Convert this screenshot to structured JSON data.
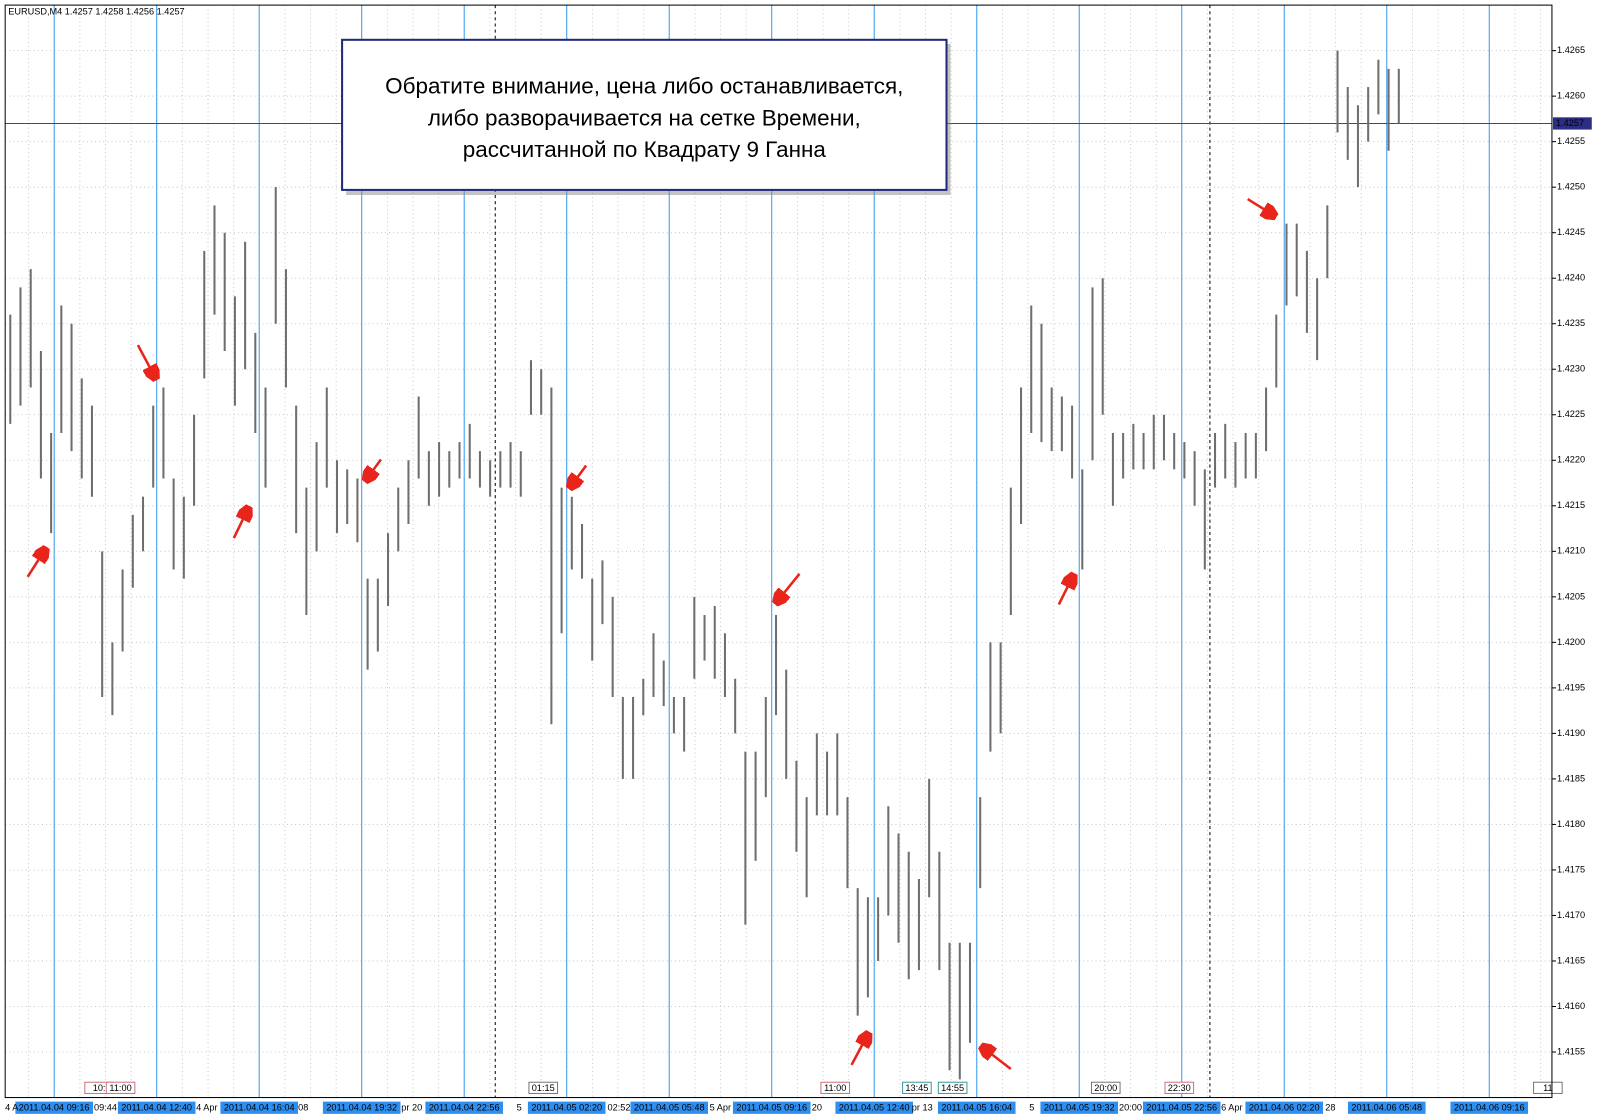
{
  "chart_data": {
    "type": "hl-bars",
    "title": "EURUSD,M4  1.4257 1.4258 1.4256 1.4257",
    "annotation": [
      "Обратите внимание, цена либо останавливается,",
      "либо разворачивается на сетке Времени,",
      "рассчитанной по Квадрату 9 Ганна"
    ],
    "color": "#6e6e6e",
    "high": [
      1.4236,
      1.4239,
      1.4241,
      1.4232,
      1.4223,
      1.4237,
      1.4235,
      1.4229,
      1.4226,
      1.421,
      1.42,
      1.4208,
      1.4214,
      1.4216,
      1.4226,
      1.4228,
      1.4218,
      1.4216,
      1.4225,
      1.4243,
      1.4248,
      1.4245,
      1.4238,
      1.4244,
      1.4234,
      1.4228,
      1.425,
      1.4241,
      1.4226,
      1.4217,
      1.4222,
      1.4228,
      1.422,
      1.4219,
      1.4218,
      1.4207,
      1.4207,
      1.4212,
      1.4217,
      1.422,
      1.4227,
      1.4221,
      1.4222,
      1.4221,
      1.4222,
      1.4224,
      1.4221,
      1.422,
      1.4221,
      1.4222,
      1.4221,
      1.4231,
      1.423,
      1.4228,
      1.4217,
      1.4216,
      1.4213,
      1.4207,
      1.4209,
      1.4205,
      1.4194,
      1.4194,
      1.4196,
      1.4201,
      1.4198,
      1.4194,
      1.4194,
      1.4205,
      1.4203,
      1.4204,
      1.4201,
      1.4196,
      1.4188,
      1.4188,
      1.4194,
      1.4203,
      1.4197,
      1.4187,
      1.4183,
      1.419,
      1.4188,
      1.419,
      1.4183,
      1.4173,
      1.4172,
      1.4172,
      1.4182,
      1.4179,
      1.4177,
      1.4174,
      1.4185,
      1.4177,
      1.4167,
      1.4167,
      1.4167,
      1.4183,
      1.42,
      1.42,
      1.4217,
      1.4228,
      1.4237,
      1.4235,
      1.4228,
      1.4227,
      1.4226,
      1.4219,
      1.4239,
      1.424,
      1.4223,
      1.4223,
      1.4224,
      1.4223,
      1.4225,
      1.4225,
      1.4223,
      1.4222,
      1.4221,
      1.4219,
      1.4223,
      1.4224,
      1.4222,
      1.4223,
      1.4223,
      1.4228,
      1.4236,
      1.4246,
      1.4246,
      1.4243,
      1.424,
      1.4248,
      1.4265,
      1.4261,
      1.4259,
      1.4261,
      1.4264,
      1.4263,
      1.4263
    ],
    "low": [
      1.4224,
      1.4226,
      1.4228,
      1.4218,
      1.4212,
      1.4223,
      1.4221,
      1.4218,
      1.4216,
      1.4194,
      1.4192,
      1.4199,
      1.4206,
      1.421,
      1.4217,
      1.4218,
      1.4208,
      1.4207,
      1.4215,
      1.4229,
      1.4236,
      1.4232,
      1.4226,
      1.423,
      1.4223,
      1.4217,
      1.4235,
      1.4228,
      1.4212,
      1.4203,
      1.421,
      1.4217,
      1.4212,
      1.4213,
      1.4211,
      1.4197,
      1.4199,
      1.4204,
      1.421,
      1.4213,
      1.4218,
      1.4215,
      1.4216,
      1.4217,
      1.4218,
      1.4218,
      1.4217,
      1.4216,
      1.4217,
      1.4217,
      1.4216,
      1.4225,
      1.4225,
      1.4191,
      1.4201,
      1.4208,
      1.4207,
      1.4198,
      1.4202,
      1.4194,
      1.4185,
      1.4185,
      1.4192,
      1.4194,
      1.4193,
      1.419,
      1.4188,
      1.4196,
      1.4198,
      1.4196,
      1.4194,
      1.419,
      1.4169,
      1.4176,
      1.4183,
      1.4192,
      1.4185,
      1.4177,
      1.4172,
      1.4181,
      1.4181,
      1.4181,
      1.4173,
      1.4159,
      1.4161,
      1.4165,
      1.417,
      1.4167,
      1.4163,
      1.4164,
      1.4172,
      1.4164,
      1.4153,
      1.4152,
      1.4156,
      1.4173,
      1.4188,
      1.419,
      1.4203,
      1.4213,
      1.4223,
      1.4222,
      1.4221,
      1.4221,
      1.4218,
      1.4208,
      1.422,
      1.4225,
      1.4215,
      1.4218,
      1.4219,
      1.4219,
      1.4219,
      1.422,
      1.4219,
      1.4218,
      1.4215,
      1.4208,
      1.4217,
      1.4218,
      1.4217,
      1.4218,
      1.4218,
      1.4221,
      1.4228,
      1.4237,
      1.4238,
      1.4234,
      1.4231,
      1.424,
      1.4256,
      1.4253,
      1.425,
      1.4255,
      1.4258,
      1.4254,
      1.4257
    ],
    "current_price": 1.4257,
    "ylim": [
      1.415,
      1.427
    ],
    "yticks": [
      1.4155,
      {
        "value": 1.416,
        "label": "1.4160"
      },
      1.4165,
      {
        "value": 1.417,
        "label": "1.4170"
      },
      1.4175,
      {
        "value": 1.418,
        "label": "1.4180"
      },
      1.4185,
      {
        "value": 1.419,
        "label": "1.4190"
      },
      1.4195,
      {
        "value": 1.42,
        "label": "1.4200"
      },
      1.4205,
      {
        "value": 1.421,
        "label": "1.4210"
      },
      1.4215,
      {
        "value": 1.422,
        "label": "1.4220"
      },
      1.4225,
      {
        "value": 1.423,
        "label": "1.4230"
      },
      1.4235,
      {
        "value": 1.424,
        "label": "1.4240"
      },
      1.4245,
      {
        "value": 1.425,
        "label": "1.4250"
      },
      1.4255,
      {
        "value": 1.426,
        "label": "1.4260"
      },
      1.4265
    ],
    "grid": true,
    "time_lines": [
      "2011.04.04 09:16",
      "2011.04.04 12:40",
      "2011.04.04 16:04",
      "2011.04.04 19:32",
      "2011.04.04 22:56",
      "2011.04.05 02:20",
      "2011.04.05 05:48",
      "2011.04.05 09:16",
      "2011.04.05 12:40",
      "2011.04.05 16:04",
      "2011.04.05 19:32",
      "2011.04.05 22:56",
      "2011.04.06 02:20",
      "2011.04.06 05:48",
      "2011.04.06 09:16"
    ],
    "time_axis_labels": [
      "4 A",
      "09:44",
      "4 Apr",
      "08",
      "pr 20",
      "5",
      "02:52",
      "5 Apr",
      "20",
      "pr 13",
      "5",
      "20:00",
      "6 Apr",
      "28"
    ],
    "markers": [
      "10:",
      "11:00",
      "01:15",
      "11:00",
      "13:45",
      "14:55",
      "20:00",
      "22:30",
      "11"
    ]
  }
}
